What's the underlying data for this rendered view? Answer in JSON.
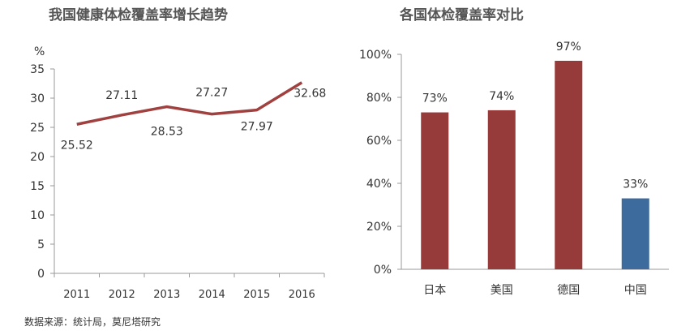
{
  "chart_data": [
    {
      "type": "line",
      "title": "我国健康体检覆盖率增长趋势",
      "ylabel": "%",
      "x": [
        "2011",
        "2012",
        "2013",
        "2014",
        "2015",
        "2016"
      ],
      "series": [
        {
          "values": [
            25.52,
            27.11,
            28.53,
            27.27,
            27.97,
            32.68
          ],
          "color": "#a0403f"
        }
      ],
      "data_labels": [
        "25.52",
        "27.11",
        "28.53",
        "27.27",
        "27.97",
        "32.68"
      ],
      "ylim": [
        0,
        35
      ],
      "yticks": [
        "0",
        "5",
        "10",
        "15",
        "20",
        "25",
        "30",
        "35"
      ],
      "grid": false
    },
    {
      "type": "bar",
      "title": "各国体检覆盖率对比",
      "categories": [
        "日本",
        "美国",
        "德国",
        "中国"
      ],
      "values": [
        73,
        74,
        97,
        33
      ],
      "data_labels": [
        "73%",
        "74%",
        "97%",
        "33%"
      ],
      "colors": [
        "#963a3a",
        "#963a3a",
        "#963a3a",
        "#3d6b9e"
      ],
      "ylim": [
        0,
        100
      ],
      "yticks": [
        "0%",
        "20%",
        "40%",
        "60%",
        "80%",
        "100%"
      ],
      "grid": false
    }
  ],
  "source": "数据来源：统计局，莫尼塔研究"
}
